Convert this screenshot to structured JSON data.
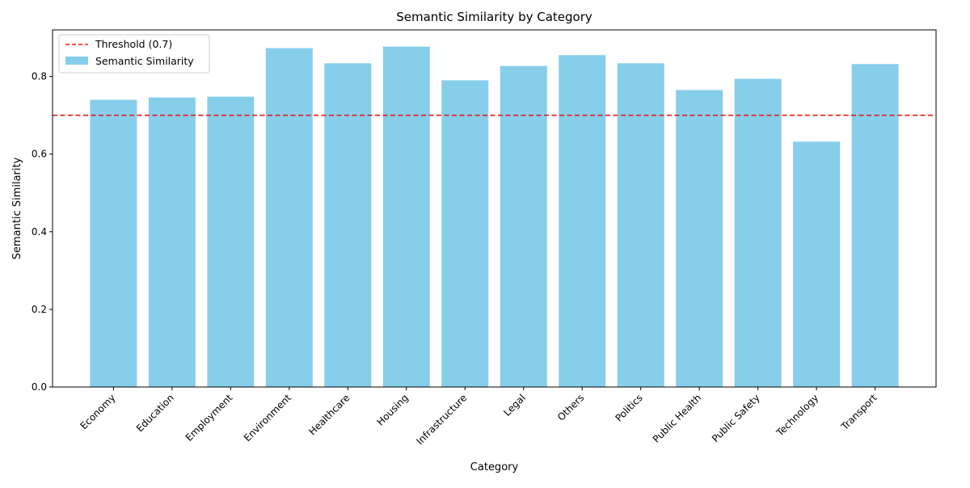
{
  "chart_data": {
    "type": "bar",
    "title": "Semantic Similarity by Category",
    "xlabel": "Category",
    "ylabel": "Semantic Similarity",
    "categories": [
      "Economy",
      "Education",
      "Employment",
      "Environment",
      "Healthcare",
      "Housing",
      "Infrastructure",
      "Legal",
      "Others",
      "Politics",
      "Public Health",
      "Public Safety",
      "Technology",
      "Transport"
    ],
    "series": [
      {
        "name": "Semantic Similarity",
        "color": "#87ceeb",
        "values": [
          0.74,
          0.746,
          0.748,
          0.873,
          0.834,
          0.877,
          0.79,
          0.827,
          0.855,
          0.834,
          0.765,
          0.794,
          0.632,
          0.832
        ]
      }
    ],
    "reference_line": {
      "name": "Threshold (0.7)",
      "value": 0.7,
      "color": "#e41a1c",
      "style": "dashed"
    },
    "ylim": [
      0,
      0.92
    ],
    "yticks": [
      0.0,
      0.2,
      0.4,
      0.6,
      0.8
    ],
    "ytick_labels": [
      "0.0",
      "0.2",
      "0.4",
      "0.6",
      "0.8"
    ],
    "legend_position": "top-left",
    "grid": false
  }
}
